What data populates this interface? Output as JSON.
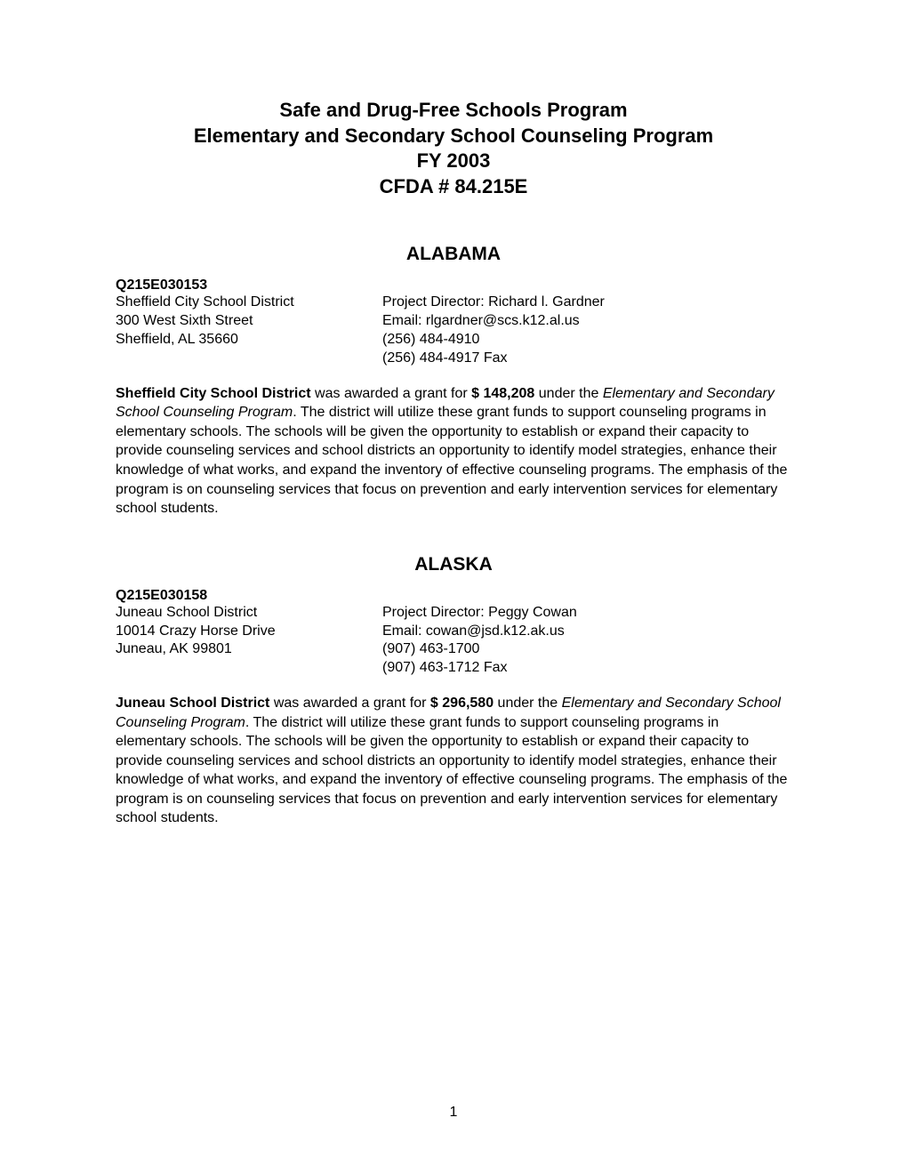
{
  "header": {
    "line1": "Safe and Drug-Free Schools Program",
    "line2": "Elementary and Secondary School Counseling Program",
    "line3": "FY 2003",
    "line4": "CFDA # 84.215E"
  },
  "entries": [
    {
      "state": "ALABAMA",
      "grant_id": "Q215E030153",
      "left": {
        "line1": "Sheffield City School District",
        "line2": "300 West Sixth Street",
        "line3": "Sheffield, AL  35660"
      },
      "right": {
        "line1": "Project Director:  Richard l. Gardner",
        "line2": "Email: rlgardner@scs.k12.al.us",
        "line3": "(256) 484-4910",
        "line4": "(256) 484-4917 Fax"
      },
      "desc": {
        "bold_lead": "Sheffield City School District",
        "mid1": " was awarded a grant for ",
        "amount": "$ 148,208",
        "mid2": " under the ",
        "program_italic": "Elementary and Secondary School Counseling Program",
        "tail": ".   The district will utilize these grant funds to support counseling programs in elementary schools.    The schools will be given the opportunity to establish or expand their capacity to provide counseling services and school districts an opportunity to identify model strategies, enhance their knowledge of what works, and expand the inventory of effective counseling programs.  The emphasis of the program is on counseling services that focus on prevention and early intervention services for elementary school students."
      }
    },
    {
      "state": "ALASKA",
      "grant_id": "Q215E030158",
      "left": {
        "line1": "Juneau School District",
        "line2": "10014 Crazy Horse Drive",
        "line3": "Juneau, AK  99801"
      },
      "right": {
        "line1": "Project Director:  Peggy Cowan",
        "line2": "Email: cowan@jsd.k12.ak.us",
        "line3": "(907) 463-1700",
        "line4": "(907) 463-1712 Fax"
      },
      "desc": {
        "bold_lead": "Juneau School District",
        "mid1": " was awarded a grant for ",
        "amount": "$ 296,580",
        "mid2": " under the ",
        "program_italic": "Elementary and Secondary School Counseling Program",
        "tail": ".   The district will utilize these grant funds to support counseling programs in elementary schools.    The schools will be given the opportunity to establish or expand their capacity to provide counseling services and school districts an opportunity to identify model strategies, enhance their knowledge of what works, and expand the inventory of effective counseling programs.  The emphasis of the program is on counseling services that focus on prevention and early intervention services for elementary school students."
      }
    }
  ],
  "page_number": "1"
}
